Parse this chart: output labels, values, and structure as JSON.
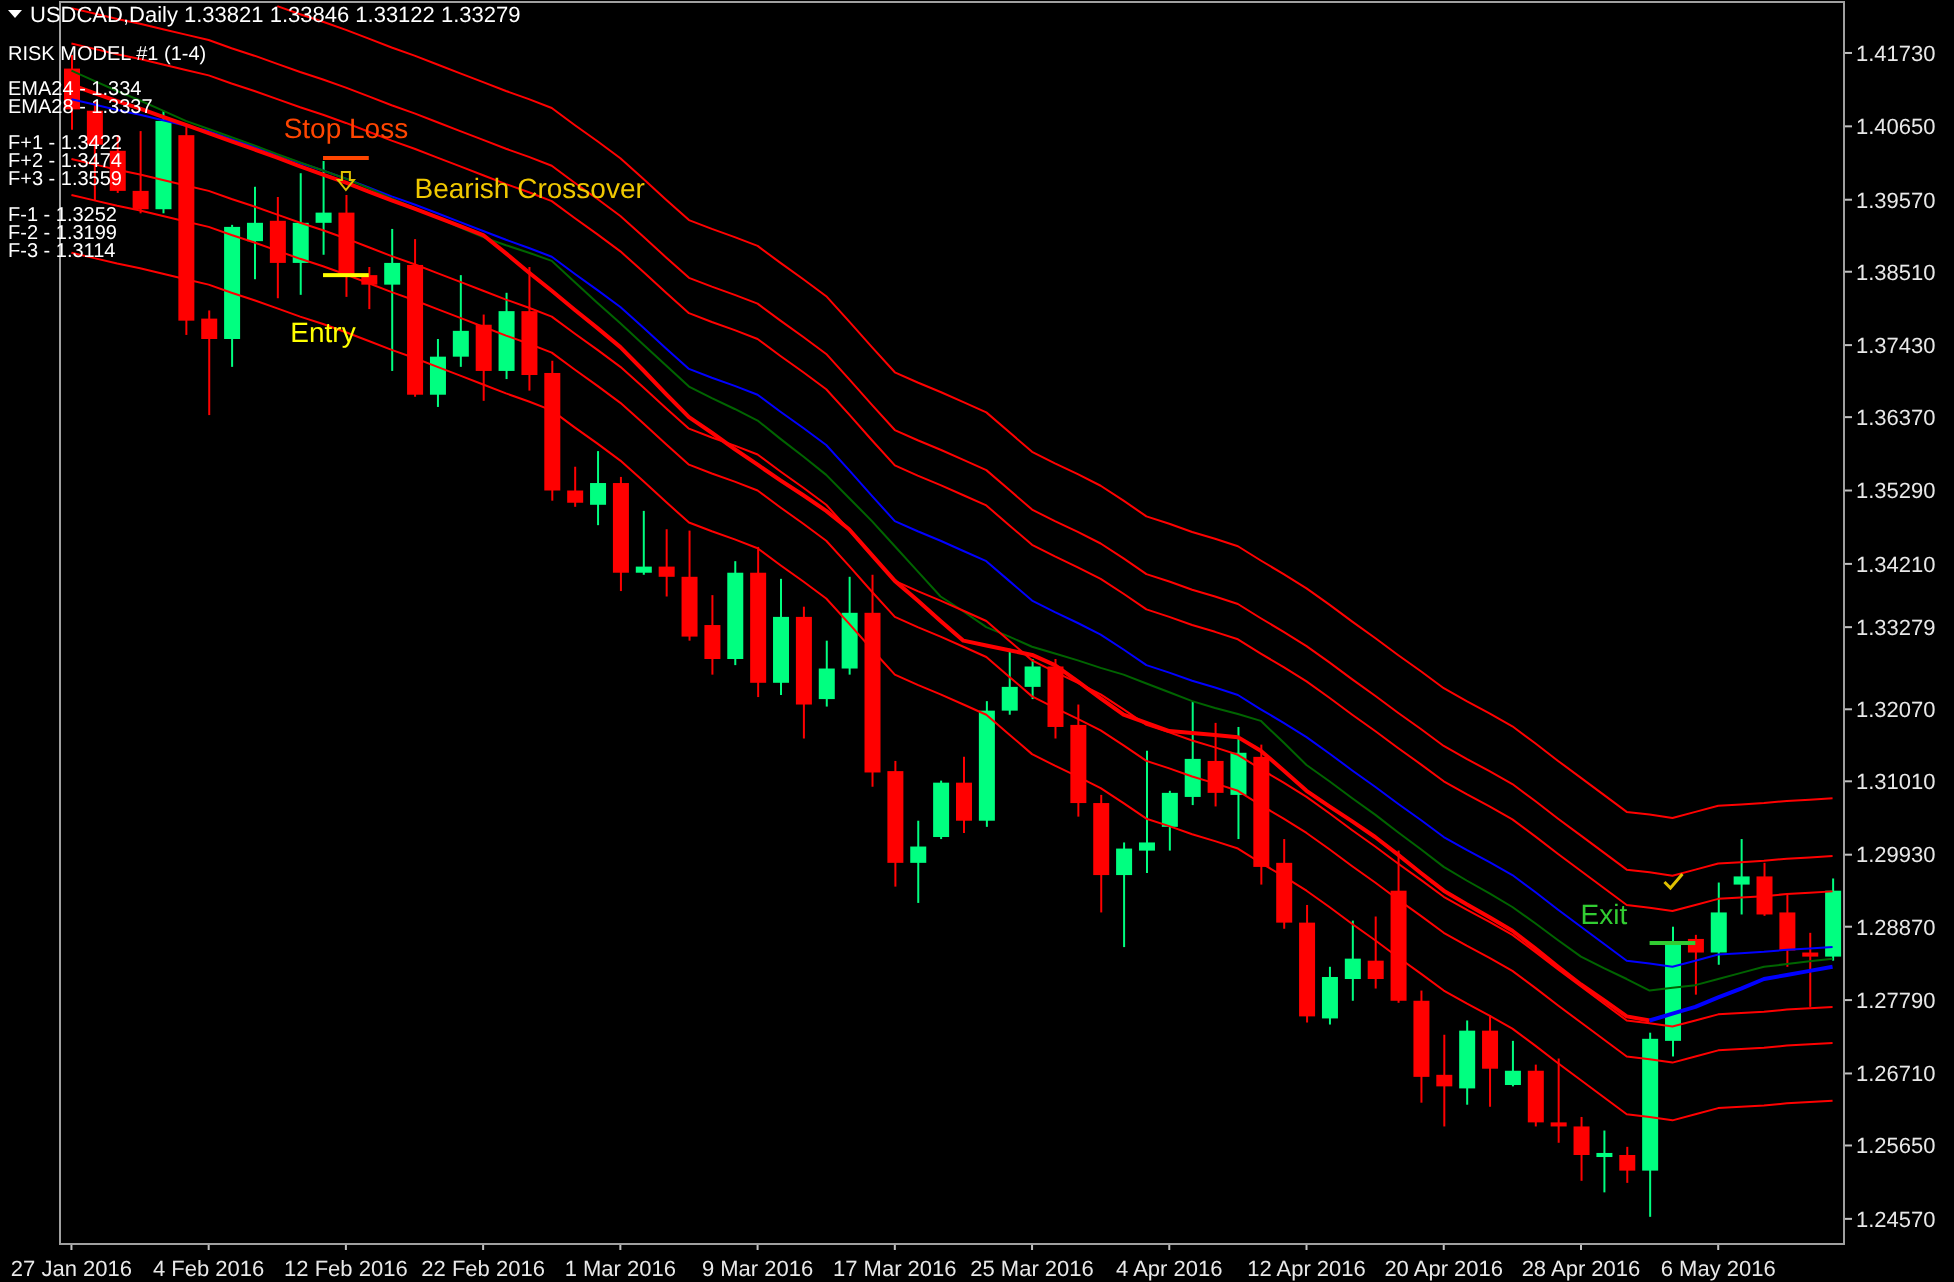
{
  "chart_data": {
    "type": "candlestick",
    "title": "USDCAD,Daily  1.33821 1.33846 1.33122 1.33279",
    "subtitle": "RISK MODEL #1 (1-4)",
    "categories": [
      "27 Jan 2016",
      null,
      null,
      null,
      null,
      null,
      "4 Feb 2016",
      null,
      null,
      null,
      null,
      null,
      "12 Feb 2016",
      null,
      null,
      null,
      null,
      null,
      "22 Feb 2016",
      null,
      null,
      null,
      null,
      null,
      "1 Mar 2016",
      null,
      null,
      null,
      null,
      null,
      "9 Mar 2016",
      null,
      null,
      null,
      null,
      null,
      "17 Mar 2016",
      null,
      null,
      null,
      null,
      null,
      "25 Mar 2016",
      null,
      null,
      null,
      null,
      null,
      "4 Apr 2016",
      null,
      null,
      null,
      null,
      null,
      "12 Apr 2016",
      null,
      null,
      null,
      null,
      null,
      "20 Apr 2016",
      null,
      null,
      null,
      null,
      null,
      "28 Apr 2016",
      null,
      null,
      null,
      null,
      null,
      "6 May 2016",
      null,
      null,
      null,
      null,
      null
    ],
    "ohlc": [
      [
        1.415,
        1.417,
        1.406,
        1.409
      ],
      [
        1.4088,
        1.4102,
        1.3955,
        1.4038
      ],
      [
        1.4029,
        1.4052,
        1.3967,
        1.397
      ],
      [
        1.397,
        1.4058,
        1.3937,
        1.3943
      ],
      [
        1.3943,
        1.4088,
        1.3937,
        1.4073
      ],
      [
        1.4052,
        1.4067,
        1.3758,
        1.3779
      ],
      [
        1.3782,
        1.3794,
        1.364,
        1.3752
      ],
      [
        1.3752,
        1.392,
        1.3711,
        1.3917
      ],
      [
        1.3896,
        1.3976,
        1.384,
        1.3923
      ],
      [
        1.3926,
        1.3961,
        1.3812,
        1.3864
      ],
      [
        1.3864,
        1.3996,
        1.3817,
        1.3923
      ],
      [
        1.3923,
        1.4014,
        1.3876,
        1.3938
      ],
      [
        1.3938,
        1.3964,
        1.3814,
        1.3846
      ],
      [
        1.3846,
        1.3858,
        1.3796,
        1.3832
      ],
      [
        1.3832,
        1.3914,
        1.3705,
        1.3864
      ],
      [
        1.3861,
        1.3899,
        1.3667,
        1.367
      ],
      [
        1.367,
        1.3752,
        1.3652,
        1.3726
      ],
      [
        1.3726,
        1.3846,
        1.3711,
        1.3764
      ],
      [
        1.3773,
        1.3788,
        1.3661,
        1.3705
      ],
      [
        1.3705,
        1.382,
        1.3693,
        1.3793
      ],
      [
        1.3793,
        1.3858,
        1.3676,
        1.3699
      ],
      [
        1.3702,
        1.372,
        1.3514,
        1.3529
      ],
      [
        1.3529,
        1.3564,
        1.3505,
        1.3511
      ],
      [
        1.3508,
        1.3587,
        1.3478,
        1.354
      ],
      [
        1.354,
        1.3549,
        1.3381,
        1.3408
      ],
      [
        1.3408,
        1.3499,
        1.3405,
        1.3417
      ],
      [
        1.3417,
        1.3472,
        1.3373,
        1.3402
      ],
      [
        1.3402,
        1.347,
        1.3308,
        1.3314
      ],
      [
        1.3331,
        1.3375,
        1.3258,
        1.3281
      ],
      [
        1.3281,
        1.3425,
        1.3272,
        1.3408
      ],
      [
        1.3408,
        1.3446,
        1.3225,
        1.3246
      ],
      [
        1.3246,
        1.3399,
        1.3228,
        1.3343
      ],
      [
        1.3343,
        1.3358,
        1.3164,
        1.3214
      ],
      [
        1.3222,
        1.3308,
        1.3211,
        1.3267
      ],
      [
        1.3267,
        1.3402,
        1.3258,
        1.3349
      ],
      [
        1.3349,
        1.3405,
        1.3093,
        1.3114
      ],
      [
        1.3116,
        1.3131,
        1.2946,
        1.2981
      ],
      [
        1.2981,
        1.3043,
        1.2922,
        1.3005
      ],
      [
        1.3019,
        1.3102,
        1.3016,
        1.3099
      ],
      [
        1.3099,
        1.3137,
        1.3025,
        1.3043
      ],
      [
        1.3043,
        1.3219,
        1.3034,
        1.3205
      ],
      [
        1.3205,
        1.3296,
        1.3199,
        1.324
      ],
      [
        1.324,
        1.3281,
        1.3222,
        1.327
      ],
      [
        1.327,
        1.3281,
        1.3164,
        1.3181
      ],
      [
        1.3184,
        1.3214,
        1.3049,
        1.3069
      ],
      [
        1.3069,
        1.3081,
        1.2908,
        1.2963
      ],
      [
        1.2963,
        1.3011,
        1.2857,
        1.3002
      ],
      [
        1.2999,
        1.3146,
        1.2966,
        1.3011
      ],
      [
        1.3034,
        1.3087,
        1.2999,
        1.3084
      ],
      [
        1.3078,
        1.3219,
        1.3066,
        1.3134
      ],
      [
        1.3131,
        1.3187,
        1.3064,
        1.3084
      ],
      [
        1.3081,
        1.3181,
        1.3016,
        1.3143
      ],
      [
        1.3137,
        1.3155,
        1.2949,
        1.2975
      ],
      [
        1.2981,
        1.3016,
        1.2884,
        1.2893
      ],
      [
        1.2893,
        1.2919,
        1.2746,
        1.2755
      ],
      [
        1.2752,
        1.2828,
        1.2743,
        1.2813
      ],
      [
        1.281,
        1.2896,
        1.2778,
        1.284
      ],
      [
        1.2837,
        1.2902,
        1.2796,
        1.281
      ],
      [
        1.294,
        1.2999,
        1.2775,
        1.2778
      ],
      [
        1.2778,
        1.2793,
        1.2628,
        1.2666
      ],
      [
        1.2669,
        1.2728,
        1.2593,
        1.2652
      ],
      [
        1.2649,
        1.2749,
        1.2625,
        1.2734
      ],
      [
        1.2734,
        1.2757,
        1.2622,
        1.2678
      ],
      [
        1.2654,
        1.2719,
        1.2652,
        1.2675
      ],
      [
        1.2675,
        1.2684,
        1.2593,
        1.2599
      ],
      [
        1.2599,
        1.2693,
        1.2569,
        1.2593
      ],
      [
        1.2593,
        1.2607,
        1.2513,
        1.2551
      ],
      [
        1.2548,
        1.2587,
        1.2496,
        1.2554
      ],
      [
        1.2551,
        1.2563,
        1.251,
        1.2528
      ],
      [
        1.2528,
        1.2731,
        1.246,
        1.2722
      ],
      [
        1.2719,
        1.2887,
        1.2696,
        1.2863
      ],
      [
        1.2869,
        1.2875,
        1.2787,
        1.2849
      ],
      [
        1.2849,
        1.2952,
        1.2831,
        1.2908
      ],
      [
        1.2949,
        1.3016,
        1.2905,
        1.2961
      ],
      [
        1.2961,
        1.2981,
        1.2903,
        1.2905
      ],
      [
        1.2908,
        1.2934,
        1.2828,
        1.2852
      ],
      [
        1.2849,
        1.2878,
        1.2769,
        1.2843
      ],
      [
        1.2843,
        1.2958,
        1.2837,
        1.294
      ]
    ],
    "colors": [
      "#ff0000",
      "#ff0000",
      "#ff0000",
      "#ff0000",
      "#00ff80",
      "#ff0000",
      "#ff0000",
      "#00ff80",
      "#00ff80",
      "#ff0000",
      "#00ff80",
      "#00ff80",
      "#ff0000",
      "#ff0000",
      "#00ff80",
      "#ff0000",
      "#00ff80",
      "#00ff80",
      "#ff0000",
      "#00ff80",
      "#ff0000",
      "#ff0000",
      "#ff0000",
      "#00ff80",
      "#ff0000",
      "#00ff80",
      "#ff0000",
      "#ff0000",
      "#ff0000",
      "#00ff80",
      "#ff0000",
      "#00ff80",
      "#ff0000",
      "#00ff80",
      "#00ff80",
      "#ff0000",
      "#ff0000",
      "#00ff80",
      "#00ff80",
      "#ff0000",
      "#00ff80",
      "#00ff80",
      "#00ff80",
      "#ff0000",
      "#ff0000",
      "#ff0000",
      "#00ff80",
      "#00ff80",
      "#00ff80",
      "#00ff80",
      "#ff0000",
      "#00ff80",
      "#ff0000",
      "#ff0000",
      "#ff0000",
      "#00ff80",
      "#00ff80",
      "#ff0000",
      "#ff0000",
      "#ff0000",
      "#ff0000",
      "#00ff80",
      "#ff0000",
      "#00ff80",
      "#ff0000",
      "#ff0000",
      "#ff0000",
      "#00ff80",
      "#ff0000",
      "#00ff80",
      "#00ff80",
      "#ff0000",
      "#00ff80",
      "#00ff80",
      "#ff0000",
      "#ff0000",
      "#ff0000",
      "#00ff80"
    ],
    "series": [
      {
        "type": "line",
        "color": "#0000ff",
        "values": [
          1.4105,
          1.4097,
          1.4089,
          1.4082,
          1.4074,
          1.4066,
          1.4058,
          1.4046,
          1.4035,
          1.4023,
          1.4011,
          1.4,
          1.3988,
          1.3975,
          1.3962,
          1.395,
          1.3937,
          1.3924,
          1.3911,
          1.3898,
          1.3886,
          1.3873,
          1.3848,
          1.3824,
          1.3799,
          1.3769,
          1.3738,
          1.3708,
          1.3695,
          1.3683,
          1.367,
          1.3645,
          1.3621,
          1.3596,
          1.3559,
          1.3521,
          1.3484,
          1.3469,
          1.3455,
          1.344,
          1.3425,
          1.3396,
          1.3367,
          1.335,
          1.3334,
          1.3317,
          1.3295,
          1.3272,
          1.3261,
          1.3249,
          1.3239,
          1.3228,
          1.3207,
          1.3187,
          1.3166,
          1.3142,
          1.3117,
          1.3093,
          1.3068,
          1.3044,
          1.3019,
          1.3,
          1.2982,
          1.2963,
          1.2938,
          1.2912,
          1.2887,
          1.2862,
          1.2837,
          1.2833,
          1.2828,
          1.2837,
          1.2846,
          1.2848,
          1.285,
          1.2853,
          1.2855,
          1.2857
        ]
      },
      {
        "type": "line",
        "color": "#006400",
        "values": [
          1.4147,
          1.4132,
          1.4117,
          1.4103,
          1.4088,
          1.4073,
          1.4061,
          1.4049,
          1.4037,
          1.4024,
          1.4012,
          1.4,
          1.3988,
          1.3974,
          1.3959,
          1.3945,
          1.3931,
          1.3916,
          1.3902,
          1.389,
          1.3879,
          1.3867,
          1.3836,
          1.3805,
          1.3775,
          1.3744,
          1.3713,
          1.3682,
          1.3665,
          1.3649,
          1.3632,
          1.3605,
          1.3579,
          1.3552,
          1.3518,
          1.3484,
          1.3447,
          1.341,
          1.3373,
          1.3351,
          1.3328,
          1.3314,
          1.3299,
          1.3289,
          1.3279,
          1.3268,
          1.3258,
          1.3245,
          1.3232,
          1.3219,
          1.3209,
          1.32,
          1.319,
          1.3158,
          1.3125,
          1.3101,
          1.3076,
          1.3052,
          1.3026,
          1.3001,
          1.2975,
          1.2955,
          1.2936,
          1.2916,
          1.2892,
          1.2867,
          1.2843,
          1.2826,
          1.281,
          1.2793,
          1.2797,
          1.2801,
          1.281,
          1.2819,
          1.2828,
          1.2832,
          1.2836,
          1.284
        ]
      },
      {
        "type": "line",
        "color": "#ff0000",
        "values": [
          null,
          null,
          null,
          null,
          null,
          null,
          null,
          null,
          null,
          1.4242,
          1.423,
          1.4219,
          1.4207,
          1.4194,
          1.4181,
          1.4169,
          1.4156,
          1.4143,
          1.413,
          1.4117,
          1.4105,
          1.4092,
          1.4067,
          1.4043,
          1.4018,
          1.3988,
          1.3957,
          1.3927,
          1.3914,
          1.3902,
          1.3889,
          1.3864,
          1.384,
          1.3815,
          1.3778,
          1.374,
          1.3703,
          1.3688,
          1.3674,
          1.3659,
          1.3644,
          1.3615,
          1.3586,
          1.3569,
          1.3553,
          1.3536,
          1.3514,
          1.3491,
          1.348,
          1.3468,
          1.3458,
          1.3447,
          1.3426,
          1.3406,
          1.3385,
          1.3361,
          1.3336,
          1.3312,
          1.3287,
          1.3263,
          1.3238,
          1.3219,
          1.3201,
          1.3182,
          1.3157,
          1.3131,
          1.3106,
          1.3081,
          1.3056,
          1.3052,
          1.3047,
          1.3056,
          1.3065,
          1.3067,
          1.3069,
          1.3072,
          1.3074,
          1.3076
        ]
      },
      {
        "type": "line",
        "color": "#ff0000",
        "values": [
          1.4239,
          1.4231,
          1.4223,
          1.4216,
          1.4208,
          1.42,
          1.4192,
          1.418,
          1.4169,
          1.4157,
          1.4145,
          1.4134,
          1.4122,
          1.4109,
          1.4096,
          1.4084,
          1.4071,
          1.4058,
          1.4045,
          1.4032,
          1.402,
          1.4007,
          1.3982,
          1.3958,
          1.3933,
          1.3903,
          1.3872,
          1.3842,
          1.3829,
          1.3817,
          1.3804,
          1.3779,
          1.3755,
          1.373,
          1.3693,
          1.3655,
          1.3618,
          1.3603,
          1.3589,
          1.3574,
          1.3559,
          1.353,
          1.3501,
          1.3484,
          1.3468,
          1.3451,
          1.3429,
          1.3406,
          1.3395,
          1.3383,
          1.3373,
          1.3362,
          1.3341,
          1.3321,
          1.33,
          1.3276,
          1.3251,
          1.3227,
          1.3202,
          1.3178,
          1.3153,
          1.3134,
          1.3116,
          1.3097,
          1.3072,
          1.3046,
          1.3021,
          1.2996,
          1.2971,
          1.2967,
          1.2962,
          1.2971,
          1.298,
          1.2982,
          1.2984,
          1.2987,
          1.2989,
          1.2991
        ]
      },
      {
        "type": "line",
        "color": "#ff0000",
        "values": [
          1.4187,
          1.4179,
          1.4171,
          1.4164,
          1.4156,
          1.4148,
          1.414,
          1.4128,
          1.4117,
          1.4105,
          1.4093,
          1.4082,
          1.407,
          1.4057,
          1.4044,
          1.4032,
          1.4019,
          1.4006,
          1.3993,
          1.398,
          1.3968,
          1.3955,
          1.393,
          1.3906,
          1.3881,
          1.3851,
          1.382,
          1.379,
          1.3777,
          1.3765,
          1.3752,
          1.3727,
          1.3703,
          1.3678,
          1.3641,
          1.3603,
          1.3566,
          1.3551,
          1.3537,
          1.3522,
          1.3507,
          1.3478,
          1.3449,
          1.3432,
          1.3416,
          1.3399,
          1.3377,
          1.3354,
          1.3343,
          1.3331,
          1.3321,
          1.331,
          1.3289,
          1.3269,
          1.3248,
          1.3224,
          1.3199,
          1.3175,
          1.315,
          1.3126,
          1.3101,
          1.3082,
          1.3064,
          1.3045,
          1.302,
          1.2994,
          1.2969,
          1.2944,
          1.2919,
          1.2915,
          1.291,
          1.2919,
          1.2928,
          1.293,
          1.2932,
          1.2935,
          1.2937,
          1.2939
        ]
      },
      {
        "type": "line",
        "color": "#ff0000",
        "values": [
          1.4017,
          1.4009,
          1.4001,
          1.3994,
          1.3986,
          1.3978,
          1.397,
          1.3958,
          1.3947,
          1.3935,
          1.3923,
          1.3912,
          1.39,
          1.3887,
          1.3874,
          1.3862,
          1.3849,
          1.3836,
          1.3823,
          1.381,
          1.3798,
          1.3785,
          1.376,
          1.3736,
          1.3711,
          1.3681,
          1.365,
          1.362,
          1.3607,
          1.3595,
          1.3582,
          1.3557,
          1.3533,
          1.3508,
          1.3471,
          1.3433,
          1.3396,
          1.3381,
          1.3367,
          1.3352,
          1.3337,
          1.3308,
          1.3279,
          1.3262,
          1.3246,
          1.3229,
          1.3207,
          1.3184,
          1.3173,
          1.3161,
          1.3151,
          1.314,
          1.3119,
          1.3099,
          1.3078,
          1.3054,
          1.3029,
          1.3005,
          1.298,
          1.2956,
          1.2931,
          1.2912,
          1.2894,
          1.2875,
          1.285,
          1.2824,
          1.2799,
          1.2774,
          1.2749,
          1.2745,
          1.274,
          1.2749,
          1.2758,
          1.276,
          1.2762,
          1.2765,
          1.2767,
          1.2769
        ]
      },
      {
        "type": "line",
        "color": "#ff0000",
        "values": [
          1.3964,
          1.3956,
          1.3948,
          1.3941,
          1.3933,
          1.3925,
          1.3917,
          1.3905,
          1.3894,
          1.3882,
          1.387,
          1.3859,
          1.3847,
          1.3834,
          1.3821,
          1.3809,
          1.3796,
          1.3783,
          1.377,
          1.3757,
          1.3745,
          1.3732,
          1.3707,
          1.3683,
          1.3658,
          1.3628,
          1.3597,
          1.3567,
          1.3554,
          1.3542,
          1.3529,
          1.3504,
          1.348,
          1.3455,
          1.3418,
          1.338,
          1.3343,
          1.3328,
          1.3314,
          1.3299,
          1.3284,
          1.3255,
          1.3226,
          1.3209,
          1.3193,
          1.3176,
          1.3154,
          1.3131,
          1.312,
          1.3108,
          1.3098,
          1.3087,
          1.3066,
          1.3046,
          1.3025,
          1.3001,
          1.2976,
          1.2952,
          1.2927,
          1.2903,
          1.2878,
          1.2859,
          1.2841,
          1.2822,
          1.2797,
          1.2771,
          1.2746,
          1.2721,
          1.2696,
          1.2692,
          1.2687,
          1.2696,
          1.2705,
          1.2707,
          1.2709,
          1.2712,
          1.2714,
          1.2716
        ]
      },
      {
        "type": "line",
        "color": "#ff0000",
        "values": [
          1.3879,
          1.3871,
          1.3863,
          1.3856,
          1.3848,
          1.384,
          1.3832,
          1.382,
          1.3809,
          1.3797,
          1.3785,
          1.3774,
          1.3762,
          1.3749,
          1.3736,
          1.3724,
          1.3711,
          1.3698,
          1.3685,
          1.3672,
          1.366,
          1.3647,
          1.3622,
          1.3598,
          1.3573,
          1.3543,
          1.3512,
          1.3482,
          1.3469,
          1.3457,
          1.3444,
          1.3419,
          1.3395,
          1.337,
          1.3333,
          1.3295,
          1.3258,
          1.3243,
          1.3229,
          1.3214,
          1.3199,
          1.317,
          1.3141,
          1.3124,
          1.3108,
          1.3091,
          1.3069,
          1.3046,
          1.3035,
          1.3023,
          1.3013,
          1.3002,
          1.2981,
          1.2961,
          1.294,
          1.2916,
          1.2891,
          1.2867,
          1.2842,
          1.2818,
          1.2793,
          1.2774,
          1.2756,
          1.2737,
          1.2712,
          1.2686,
          1.2661,
          1.2636,
          1.2611,
          1.2607,
          1.2602,
          1.2611,
          1.262,
          1.2622,
          1.2624,
          1.2627,
          1.2629,
          1.2631
        ]
      },
      {
        "type": "line",
        "color": "#ff0000",
        "values": [
          1.4126,
          1.4114,
          1.4102,
          1.4091,
          1.4079,
          1.4067,
          1.4055,
          1.4043,
          1.4031,
          1.4019,
          1.4006,
          1.3994,
          1.3982,
          1.3969,
          1.3956,
          1.3944,
          1.3931,
          1.3918,
          1.3905,
          1.3878,
          1.385,
          1.3823,
          1.3795,
          1.3768,
          1.374,
          1.3706,
          1.3671,
          1.3637,
          1.3614,
          1.359,
          1.3567,
          1.3544,
          1.3522,
          1.3499,
          1.3472,
          1.3434,
          1.3396,
          1.3367,
          1.3337,
          1.3308,
          1.3301,
          1.3294,
          1.3287,
          1.3272,
          1.3248,
          1.3223,
          1.3199,
          1.3187,
          1.3175,
          1.3172,
          1.3169,
          1.3166,
          1.3146,
          1.3117,
          1.3087,
          1.3064,
          1.3042,
          1.3019,
          1.2993,
          1.2966,
          1.294,
          1.292,
          1.2901,
          1.2881,
          1.2855,
          1.2828,
          1.2802,
          1.2779,
          1.2755,
          1.2749,
          null,
          null,
          null,
          null,
          null,
          null,
          null,
          null
        ]
      },
      {
        "type": "line",
        "color": "#0000ff",
        "values": [
          null,
          null,
          null,
          null,
          null,
          null,
          null,
          null,
          null,
          null,
          null,
          null,
          null,
          null,
          null,
          null,
          null,
          null,
          null,
          null,
          null,
          null,
          null,
          null,
          null,
          null,
          null,
          null,
          null,
          null,
          null,
          null,
          null,
          null,
          null,
          null,
          null,
          null,
          null,
          null,
          null,
          null,
          null,
          null,
          null,
          null,
          null,
          null,
          null,
          null,
          null,
          null,
          null,
          null,
          null,
          null,
          null,
          null,
          null,
          null,
          null,
          null,
          null,
          null,
          null,
          null,
          null,
          null,
          null,
          1.2749,
          1.2759,
          1.2769,
          1.2783,
          1.2796,
          1.281,
          1.2816,
          1.2822,
          1.2828
        ]
      }
    ],
    "ylim": [
      1.242,
      1.4248
    ],
    "yticks": [
      {
        "value": 1.2457,
        "label": "1.24570"
      },
      {
        "value": 1.2565,
        "label": "1.25650"
      },
      {
        "value": 1.2671,
        "label": "1.26710"
      },
      {
        "value": 1.2779,
        "label": "1.27790"
      },
      {
        "value": 1.2887,
        "label": "1.28870"
      },
      {
        "value": 1.2993,
        "label": "1.29930"
      },
      {
        "value": 1.3101,
        "label": "1.31010"
      },
      {
        "value": 1.3207,
        "label": "1.32070"
      },
      {
        "value": 1.33279,
        "label": "1.33279"
      },
      {
        "value": 1.3421,
        "label": "1.34210"
      },
      {
        "value": 1.3529,
        "label": "1.35290"
      },
      {
        "value": 1.3637,
        "label": "1.36370"
      },
      {
        "value": 1.3743,
        "label": "1.37430"
      },
      {
        "value": 1.3851,
        "label": "1.38510"
      },
      {
        "value": 1.3957,
        "label": "1.39570"
      },
      {
        "value": 1.4065,
        "label": "1.40650"
      },
      {
        "value": 1.4173,
        "label": "1.41730"
      }
    ],
    "annotations": [
      "EMA24 - 1.334",
      "EMA28 - 1.3337",
      "F+1 - 1.3422",
      "F+2 - 1.3474",
      "F+3 - 1.3559",
      "F-1 - 1.3252",
      "F-2 - 1.3199",
      "F-3 - 1.3114",
      "Stop Loss",
      "Bearish Crossover",
      {
        "text": "Entry",
        "y": 1.3846
      },
      {
        "text": "Exit",
        "y": 1.2863
      }
    ]
  }
}
